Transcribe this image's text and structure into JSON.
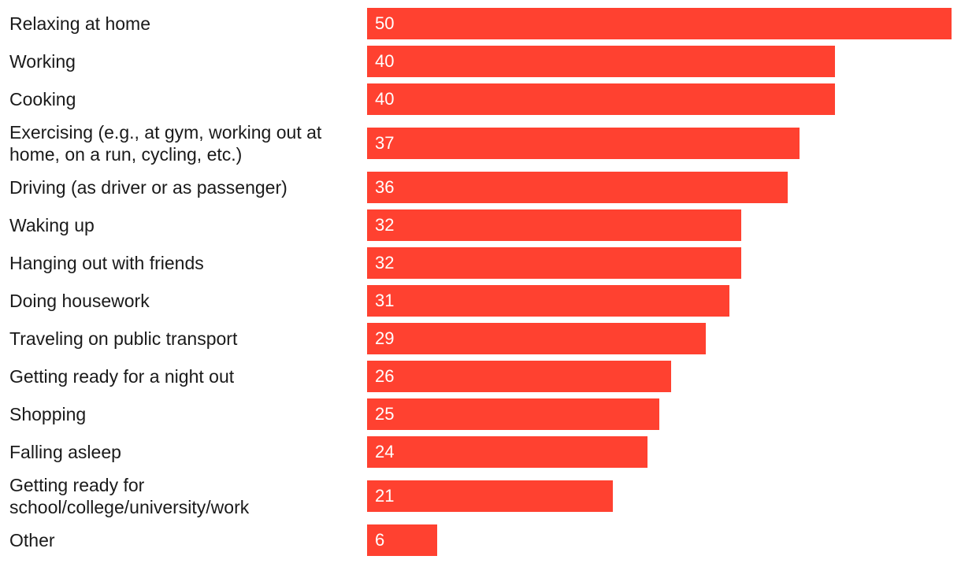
{
  "chart_data": {
    "type": "bar",
    "orientation": "horizontal",
    "title": "",
    "xlabel": "",
    "ylabel": "",
    "xlim": [
      0,
      50
    ],
    "grid": false,
    "bar_color": "#ff4130",
    "categories": [
      "Relaxing at home",
      "Working",
      "Cooking",
      "Exercising (e.g., at gym, working out at home, on a run, cycling, etc.)",
      "Driving (as driver or as passenger)",
      "Waking up",
      "Hanging out with friends",
      "Doing housework",
      "Traveling on public transport",
      "Getting ready for a night out",
      "Shopping",
      "Falling asleep",
      "Getting ready for school/college/university/work",
      "Other"
    ],
    "values": [
      50,
      40,
      40,
      37,
      36,
      32,
      32,
      31,
      29,
      26,
      25,
      24,
      21,
      6
    ]
  }
}
